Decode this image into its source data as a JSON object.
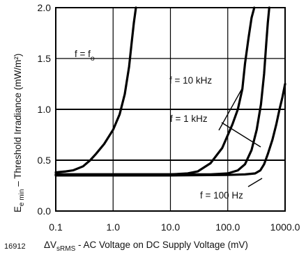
{
  "figure_id": "16912",
  "chart_data": {
    "type": "line",
    "xscale": "log",
    "xlim": [
      0.1,
      1000.0
    ],
    "ylim": [
      0.0,
      2.0
    ],
    "x_tick_labels": [
      "0.1",
      "1.0",
      "10.0",
      "100.0",
      "1000.0"
    ],
    "x_tick_values": [
      0.1,
      1.0,
      10.0,
      100.0,
      1000.0
    ],
    "y_tick_labels": [
      "0.0",
      "0.5",
      "1.0",
      "1.5",
      "2.0"
    ],
    "y_tick_values": [
      0.0,
      0.5,
      1.0,
      1.5,
      2.0
    ],
    "ylabel_main": "E",
    "ylabel_sub": "e min",
    "ylabel_rest": " – Threshold Irradiance (mW/m²)",
    "xlabel_main": "ΔV",
    "xlabel_sub": "sRMS",
    "xlabel_rest": " - AC  Voltage on DC Supply Voltage (mV)",
    "grid": true,
    "series": [
      {
        "name": "f = f",
        "name_sub": "o",
        "x": [
          0.1,
          0.15,
          0.2,
          0.3,
          0.4,
          0.5,
          0.7,
          1.0,
          1.3,
          1.6,
          1.9,
          2.1,
          2.3,
          2.5
        ],
        "y": [
          0.38,
          0.39,
          0.4,
          0.44,
          0.5,
          0.56,
          0.66,
          0.8,
          0.95,
          1.15,
          1.42,
          1.65,
          1.85,
          2.0
        ]
      },
      {
        "name": "f = 10 kHz",
        "x": [
          0.1,
          1.0,
          10.0,
          20.0,
          30.0,
          50.0,
          80.0,
          120.0,
          150.0,
          180.0,
          200.0,
          230.0,
          260.0,
          290.0
        ],
        "y": [
          0.36,
          0.36,
          0.36,
          0.37,
          0.39,
          0.47,
          0.62,
          0.85,
          1.0,
          1.2,
          1.45,
          1.7,
          1.9,
          2.0
        ]
      },
      {
        "name": "f = 1 kHz",
        "x": [
          0.1,
          1.0,
          10.0,
          50.0,
          100.0,
          150.0,
          200.0,
          260.0,
          320.0,
          380.0,
          430.0,
          470.0,
          500.0,
          530.0
        ],
        "y": [
          0.36,
          0.36,
          0.36,
          0.36,
          0.37,
          0.4,
          0.46,
          0.6,
          0.8,
          1.05,
          1.35,
          1.65,
          1.85,
          2.0
        ]
      },
      {
        "name": "f = 100 Hz",
        "x": [
          0.1,
          1.0,
          10.0,
          100.0,
          200.0,
          300.0,
          370.0,
          430.0,
          500.0,
          600.0,
          700.0,
          800.0,
          900.0,
          1000.0
        ],
        "y": [
          0.35,
          0.35,
          0.35,
          0.355,
          0.36,
          0.37,
          0.4,
          0.46,
          0.56,
          0.7,
          0.85,
          1.0,
          1.12,
          1.25
        ]
      }
    ]
  }
}
